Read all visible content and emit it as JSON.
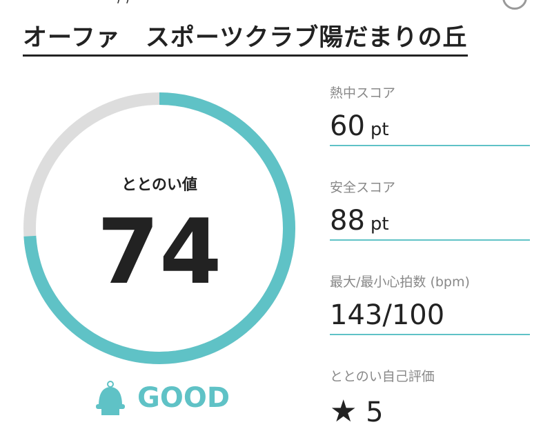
{
  "header": {
    "partial_text": "/ /",
    "title": "オーファ　スポーツクラブ陽だまりの丘"
  },
  "gauge": {
    "label": "ととのい値",
    "value": "74",
    "percent": 74,
    "progress_color": "#5fc2c6",
    "track_color": "#dddddd"
  },
  "status": {
    "icon": "sauna-hat-icon",
    "label": "GOOD"
  },
  "stats": [
    {
      "label": "熱中スコア",
      "value": "60",
      "unit": "pt"
    },
    {
      "label": "安全スコア",
      "value": "88",
      "unit": "pt"
    },
    {
      "label": "最大/最小心拍数 (bpm)",
      "value": "143/100",
      "unit": ""
    },
    {
      "label": "ととのい自己評価",
      "value": "5",
      "icon": "star-icon"
    }
  ]
}
